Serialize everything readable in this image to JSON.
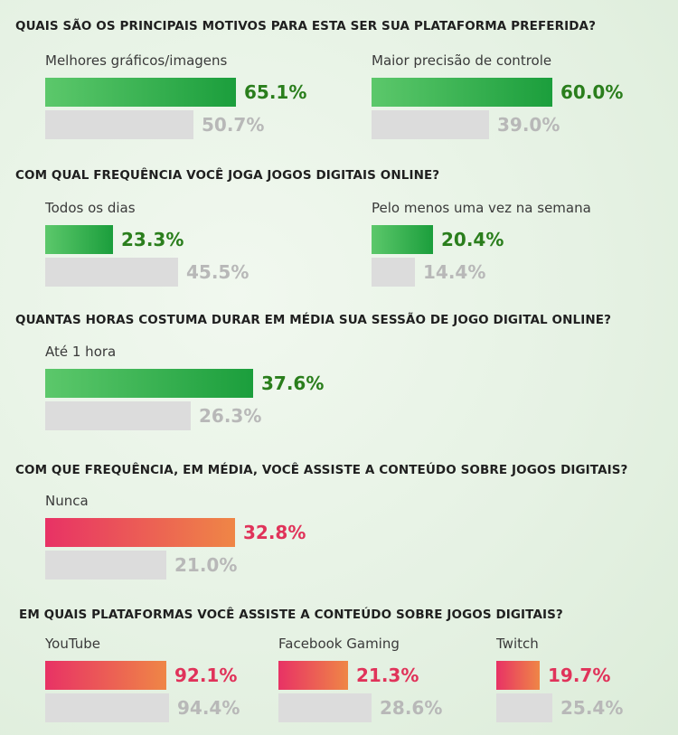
{
  "colors": {
    "primary_green": "#1b9e3c",
    "primary_pink": "#e83265",
    "comparison_gray": "#dcdcdc",
    "value_green": "#2a7e1c",
    "value_pink": "#e0335a",
    "value_gray": "#b8b8b8"
  },
  "chart_data": [
    {
      "type": "bar",
      "title": "QUAIS SÃO OS PRINCIPAIS MOTIVOS PARA ESTA SER SUA PLATAFORMA PREFERIDA?",
      "scheme": "green",
      "categories": [
        "Melhores gráficos/imagens",
        "Maior precisão de controle"
      ],
      "series": [
        {
          "values": [
            65.1,
            60.0
          ],
          "labels": [
            "65.1%",
            "60.0%"
          ]
        },
        {
          "values": [
            50.7,
            39.0
          ],
          "labels": [
            "50.7%",
            "39.0%"
          ]
        }
      ]
    },
    {
      "type": "bar",
      "title": "COM QUAL FREQUÊNCIA VOCÊ JOGA JOGOS DIGITAIS ONLINE?",
      "scheme": "green",
      "categories": [
        "Todos os dias",
        "Pelo menos uma vez na semana"
      ],
      "series": [
        {
          "values": [
            23.3,
            20.4
          ],
          "labels": [
            "23.3%",
            "20.4%"
          ]
        },
        {
          "values": [
            45.5,
            14.4
          ],
          "labels": [
            "45.5%",
            "14.4%"
          ]
        }
      ]
    },
    {
      "type": "bar",
      "title": "QUANTAS HORAS COSTUMA DURAR EM MÉDIA SUA SESSÃO DE JOGO DIGITAL ONLINE?",
      "scheme": "green",
      "categories": [
        "Até 1 hora"
      ],
      "series": [
        {
          "values": [
            37.6
          ],
          "labels": [
            "37.6%"
          ]
        },
        {
          "values": [
            26.3
          ],
          "labels": [
            "26.3%"
          ]
        }
      ]
    },
    {
      "type": "bar",
      "title": "COM QUE FREQUÊNCIA, EM MÉDIA, VOCÊ ASSISTE A CONTEÚDO SOBRE JOGOS DIGITAIS?",
      "scheme": "pink",
      "categories": [
        "Nunca"
      ],
      "series": [
        {
          "values": [
            32.8
          ],
          "labels": [
            "32.8%"
          ]
        },
        {
          "values": [
            21.0
          ],
          "labels": [
            "21.0%"
          ]
        }
      ]
    },
    {
      "type": "bar",
      "title": "EM QUAIS PLATAFORMAS VOCÊ ASSISTE A CONTEÚDO SOBRE JOGOS DIGITAIS?",
      "scheme": "pink",
      "categories": [
        "YouTube",
        "Facebook Gaming",
        "Twitch"
      ],
      "series": [
        {
          "values": [
            92.1,
            21.3,
            19.7
          ],
          "labels": [
            "92.1%",
            "21.3%",
            "19.7%"
          ]
        },
        {
          "values": [
            94.4,
            28.6,
            25.4
          ],
          "labels": [
            "94.4%",
            "28.6%",
            "25.4%"
          ]
        }
      ]
    }
  ]
}
